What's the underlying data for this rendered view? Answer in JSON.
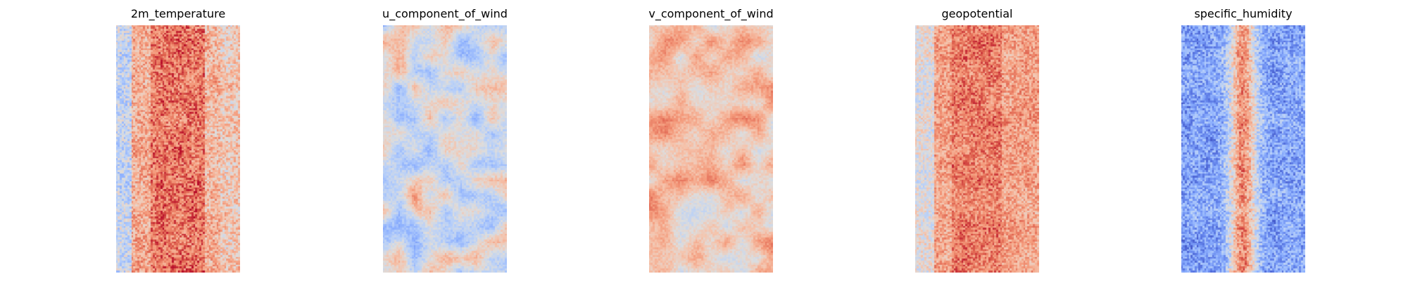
{
  "chart_data": [
    {
      "type": "heatmap",
      "title": "2m_temperature",
      "colormap": "coolwarm",
      "pattern": "temperature",
      "axes": "off",
      "legend": "none"
    },
    {
      "type": "heatmap",
      "title": "u_component_of_wind",
      "colormap": "coolwarm",
      "pattern": "u_wind",
      "axes": "off",
      "legend": "none"
    },
    {
      "type": "heatmap",
      "title": "v_component_of_wind",
      "colormap": "coolwarm",
      "pattern": "v_wind",
      "axes": "off",
      "legend": "none"
    },
    {
      "type": "heatmap",
      "title": "geopotential",
      "colormap": "coolwarm",
      "pattern": "geopotential",
      "axes": "off",
      "legend": "none"
    },
    {
      "type": "heatmap",
      "title": "specific_humidity",
      "colormap": "coolwarm",
      "pattern": "humidity",
      "axes": "off",
      "legend": "none"
    }
  ]
}
